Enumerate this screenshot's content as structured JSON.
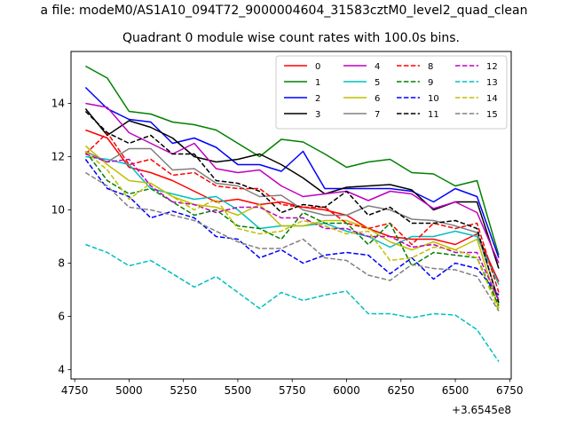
{
  "figure": {
    "suptitle": "a file: modeM0/AS1A10_094T72_9000004604_31583cztM0_level2_quad_clean",
    "title": "Quadrant 0 module wise count rates with 100.0s bins."
  },
  "chart_data": {
    "type": "line",
    "title": "Quadrant 0 module wise count rates with 100.0s bins.",
    "xlabel": "",
    "ylabel": "",
    "x_offset_label": "+3.6545e8",
    "xlim": [
      4733,
      6757
    ],
    "ylim": [
      3.65,
      15.95
    ],
    "xticks": [
      4750,
      5000,
      5250,
      5500,
      5750,
      6000,
      6250,
      6500,
      6750
    ],
    "yticks": [
      4,
      6,
      8,
      10,
      12,
      14
    ],
    "grid": false,
    "legend_placement": "top-right",
    "x": [
      4800,
      4900,
      5000,
      5100,
      5200,
      5300,
      5400,
      5500,
      5600,
      5700,
      5800,
      5900,
      6000,
      6100,
      6200,
      6300,
      6400,
      6500,
      6600,
      6700
    ],
    "series": [
      {
        "name": "0",
        "color": "#ff0000",
        "dash": "solid",
        "values": [
          13.0,
          12.7,
          11.6,
          11.4,
          11.1,
          10.7,
          10.3,
          10.4,
          10.2,
          10.3,
          10.1,
          10.0,
          9.8,
          9.3,
          9.0,
          8.9,
          8.9,
          8.7,
          9.1,
          7.3
        ]
      },
      {
        "name": "1",
        "color": "#008000",
        "dash": "solid",
        "values": [
          15.4,
          14.95,
          13.7,
          13.6,
          13.3,
          13.2,
          13.0,
          12.5,
          12.0,
          12.65,
          12.55,
          12.1,
          11.6,
          11.8,
          11.9,
          11.4,
          11.35,
          10.9,
          11.1,
          8.3
        ]
      },
      {
        "name": "2",
        "color": "#0000ff",
        "dash": "solid",
        "values": [
          14.6,
          13.8,
          13.4,
          13.3,
          12.5,
          12.7,
          12.35,
          11.7,
          11.7,
          11.45,
          12.2,
          10.8,
          10.8,
          10.8,
          10.8,
          10.7,
          10.3,
          10.8,
          10.5,
          8.2
        ]
      },
      {
        "name": "3",
        "color": "#000000",
        "dash": "solid",
        "values": [
          13.8,
          12.8,
          13.35,
          13.1,
          12.7,
          12.0,
          11.8,
          11.9,
          12.1,
          11.7,
          11.2,
          10.6,
          10.85,
          10.9,
          10.95,
          10.75,
          10.0,
          10.3,
          10.3,
          7.8
        ]
      },
      {
        "name": "4",
        "color": "#bf00bf",
        "dash": "solid",
        "values": [
          14.0,
          13.85,
          12.9,
          12.5,
          12.1,
          12.5,
          11.55,
          11.4,
          11.5,
          10.9,
          10.5,
          10.6,
          10.7,
          10.35,
          10.7,
          10.6,
          10.05,
          10.3,
          9.9,
          8.0
        ]
      },
      {
        "name": "5",
        "color": "#00bfbf",
        "dash": "solid",
        "values": [
          12.0,
          11.9,
          11.7,
          10.8,
          10.6,
          10.4,
          10.5,
          10.0,
          9.3,
          9.4,
          9.4,
          9.5,
          9.2,
          9.0,
          8.6,
          9.0,
          9.0,
          9.2,
          9.0,
          7.2
        ]
      },
      {
        "name": "6",
        "color": "#bfbf00",
        "dash": "solid",
        "values": [
          12.4,
          11.7,
          11.1,
          11.0,
          10.5,
          10.2,
          10.1,
          9.8,
          10.2,
          9.4,
          9.4,
          9.6,
          9.6,
          9.3,
          8.8,
          8.5,
          8.8,
          8.5,
          8.9,
          6.3
        ]
      },
      {
        "name": "7",
        "color": "#808080",
        "dash": "solid",
        "values": [
          12.2,
          11.8,
          12.3,
          12.3,
          11.5,
          11.55,
          11.0,
          10.9,
          10.5,
          10.55,
          10.0,
          9.8,
          9.8,
          10.15,
          10.0,
          9.65,
          9.6,
          9.4,
          9.15,
          6.6
        ]
      },
      {
        "name": "8",
        "color": "#ff0000",
        "dash": "dashed",
        "values": [
          12.1,
          12.9,
          11.7,
          11.9,
          11.3,
          11.4,
          10.9,
          10.8,
          10.8,
          10.2,
          10.1,
          10.1,
          9.5,
          9.3,
          9.5,
          8.7,
          9.5,
          9.3,
          9.5,
          6.9
        ]
      },
      {
        "name": "9",
        "color": "#008000",
        "dash": "dashed",
        "values": [
          12.2,
          11.1,
          10.6,
          10.8,
          10.3,
          9.8,
          10.0,
          9.4,
          9.3,
          8.9,
          9.9,
          9.5,
          9.5,
          8.7,
          9.5,
          7.9,
          8.4,
          8.3,
          8.2,
          6.4
        ]
      },
      {
        "name": "10",
        "color": "#0000ff",
        "dash": "dashed",
        "values": [
          11.9,
          10.8,
          10.5,
          9.7,
          9.95,
          9.7,
          9.0,
          8.9,
          8.2,
          8.5,
          8.0,
          8.3,
          8.4,
          8.3,
          7.6,
          8.2,
          7.4,
          8.0,
          7.8,
          6.8
        ]
      },
      {
        "name": "11",
        "color": "#000000",
        "dash": "dashed",
        "values": [
          13.7,
          12.9,
          12.5,
          12.8,
          12.1,
          12.1,
          11.1,
          11.0,
          10.7,
          9.9,
          10.2,
          10.1,
          10.7,
          9.8,
          10.1,
          9.5,
          9.5,
          9.6,
          9.3,
          6.5
        ]
      },
      {
        "name": "12",
        "color": "#bf00bf",
        "dash": "dashed",
        "values": [
          12.1,
          11.8,
          11.9,
          10.9,
          10.3,
          10.2,
          9.9,
          10.1,
          10.1,
          9.7,
          9.7,
          9.3,
          9.3,
          9.0,
          9.0,
          8.6,
          8.7,
          8.4,
          8.4,
          6.6
        ]
      },
      {
        "name": "13",
        "color": "#00bfbf",
        "dash": "dashed",
        "values": [
          8.7,
          8.4,
          7.9,
          8.1,
          7.6,
          7.1,
          7.5,
          6.9,
          6.3,
          6.9,
          6.6,
          6.8,
          6.95,
          6.1,
          6.1,
          5.95,
          6.1,
          6.05,
          5.5,
          4.3
        ]
      },
      {
        "name": "14",
        "color": "#bfbf00",
        "dash": "dashed",
        "values": [
          12.2,
          11.5,
          10.4,
          11.0,
          10.5,
          10.0,
          10.4,
          9.3,
          9.1,
          9.2,
          9.6,
          9.4,
          9.1,
          9.2,
          8.1,
          8.2,
          8.6,
          8.5,
          8.2,
          6.2
        ]
      },
      {
        "name": "15",
        "color": "#808080",
        "dash": "dashed",
        "values": [
          11.4,
          10.9,
          10.1,
          10.0,
          9.8,
          9.6,
          9.2,
          8.8,
          8.55,
          8.55,
          8.9,
          8.2,
          8.1,
          7.55,
          7.35,
          7.95,
          7.8,
          7.75,
          7.5,
          6.2
        ]
      }
    ]
  }
}
